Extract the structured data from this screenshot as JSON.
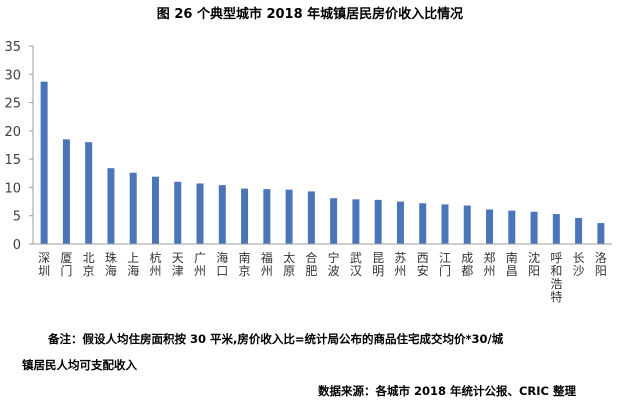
{
  "colors": {
    "bar": "#4a76b9",
    "axis": "#9e9e9e",
    "text": "#000000"
  },
  "chart_data": {
    "type": "bar",
    "title": "图 26 个典型城市 2018 年城镇居民房价收入比情况",
    "categories": [
      "深圳",
      "厦门",
      "北京",
      "珠海",
      "上海",
      "杭州",
      "天津",
      "广州",
      "海口",
      "南京",
      "福州",
      "太原",
      "合肥",
      "宁波",
      "武汉",
      "昆明",
      "苏州",
      "西安",
      "江门",
      "成都",
      "郑州",
      "南昌",
      "沈阳",
      "呼和浩特",
      "长沙",
      "洛阳"
    ],
    "values": [
      28.7,
      18.5,
      18.0,
      13.4,
      12.6,
      11.9,
      11.0,
      10.7,
      10.4,
      9.8,
      9.7,
      9.6,
      9.3,
      8.1,
      7.9,
      7.8,
      7.5,
      7.2,
      7.0,
      6.8,
      6.1,
      5.9,
      5.7,
      5.3,
      4.6,
      3.7
    ],
    "ylim": [
      0,
      35
    ],
    "yticks": [
      "0",
      "5",
      "10",
      "15",
      "20",
      "25",
      "30",
      "35"
    ],
    "xlabel": "",
    "ylabel": "",
    "grid": false,
    "legend": "none"
  },
  "notes": {
    "line1": "备注：假设人均住房面积按 30 平米,房价收入比=统计局公布的商品住宅成交均价*30/城",
    "line2": "镇居民人均可支配收入",
    "source": "数据来源：各城市 2018 年统计公报、CRIC 整理"
  }
}
